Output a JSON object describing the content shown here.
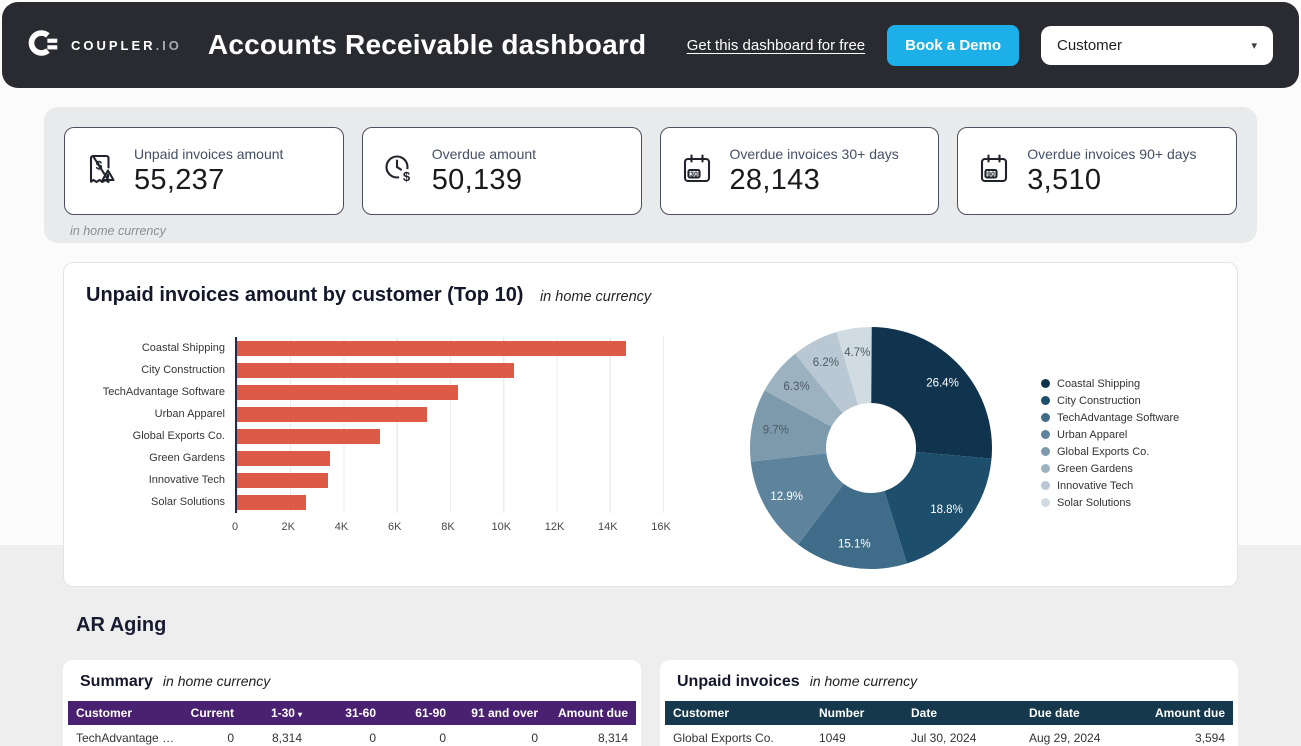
{
  "header": {
    "brand_name": "COUPLER",
    "brand_tld": ".IO",
    "title": "Accounts Receivable dashboard",
    "link_label": "Get this dashboard for free",
    "demo_button_label": "Book a Demo",
    "demo_button_color": "#1db0e8",
    "filter_value": "Customer"
  },
  "kpis": {
    "note": "in home currency",
    "cards": [
      {
        "icon": "invoice-alert-icon",
        "label": "Unpaid invoices amount",
        "value": "55,237"
      },
      {
        "icon": "clock-dollar-icon",
        "label": "Overdue amount",
        "value": "50,139"
      },
      {
        "icon": "calendar-30-icon",
        "badge": "30",
        "label": "Overdue invoices 30+ days",
        "value": "28,143"
      },
      {
        "icon": "calendar-90-icon",
        "badge": "90",
        "label": "Overdue invoices 90+ days",
        "value": "3,510"
      }
    ]
  },
  "chart_card": {
    "title": "Unpaid invoices amount by customer (Top 10)",
    "subtitle": "in home currency"
  },
  "chart_data": [
    {
      "type": "bar",
      "orientation": "horizontal",
      "title": "Unpaid invoices amount by customer (Top 10)",
      "categories": [
        "Coastal Shipping",
        "City Construction",
        "TechAdvantage Software",
        "Urban Apparel",
        "Global Exports Co.",
        "Green Gardens",
        "Innovative Tech",
        "Solar Solutions"
      ],
      "values": [
        14600,
        10400,
        8314,
        7126,
        5358,
        3480,
        3425,
        2596
      ],
      "xlabel": "",
      "ylabel": "",
      "xlim": [
        0,
        16000
      ],
      "xticks": [
        "0",
        "2K",
        "4K",
        "6K",
        "8K",
        "10K",
        "12K",
        "14K",
        "16K"
      ],
      "grid": true,
      "bar_color": "#dc5a46"
    },
    {
      "type": "pie",
      "donut": true,
      "labels": [
        "Coastal Shipping",
        "City Construction",
        "TechAdvantage Software",
        "Urban Apparel",
        "Global Exports Co.",
        "Green Gardens",
        "Innovative Tech",
        "Solar Solutions"
      ],
      "values": [
        26.4,
        18.8,
        15.1,
        12.9,
        9.7,
        6.3,
        6.2,
        4.7
      ],
      "unit": "%",
      "colors": [
        "#11344e",
        "#1d4e6b",
        "#3f6c88",
        "#5d849c",
        "#7d9aac",
        "#9cb2c0",
        "#b9c8d2",
        "#d1dce2"
      ],
      "legend_position": "right"
    }
  ],
  "ar_aging": {
    "heading": "AR Aging",
    "summary": {
      "title": "Summary",
      "subtitle": "in home currency",
      "header_bg": "#4a2070",
      "columns": [
        "Customer",
        "Current",
        "1-30",
        "31-60",
        "61-90",
        "91 and over",
        "Amount due"
      ],
      "sort_column": "1-30",
      "rows": [
        [
          "TechAdvantage …",
          "0",
          "8,314",
          "0",
          "0",
          "0",
          "8,314"
        ]
      ]
    },
    "invoices": {
      "title": "Unpaid invoices",
      "subtitle": "in home currency",
      "header_bg": "#16384d",
      "columns": [
        "Customer",
        "Number",
        "Date",
        "Due date",
        "Amount due"
      ],
      "rows": [
        [
          "Global Exports Co.",
          "1049",
          "Jul 30, 2024",
          "Aug 29, 2024",
          "3,594"
        ]
      ]
    }
  }
}
